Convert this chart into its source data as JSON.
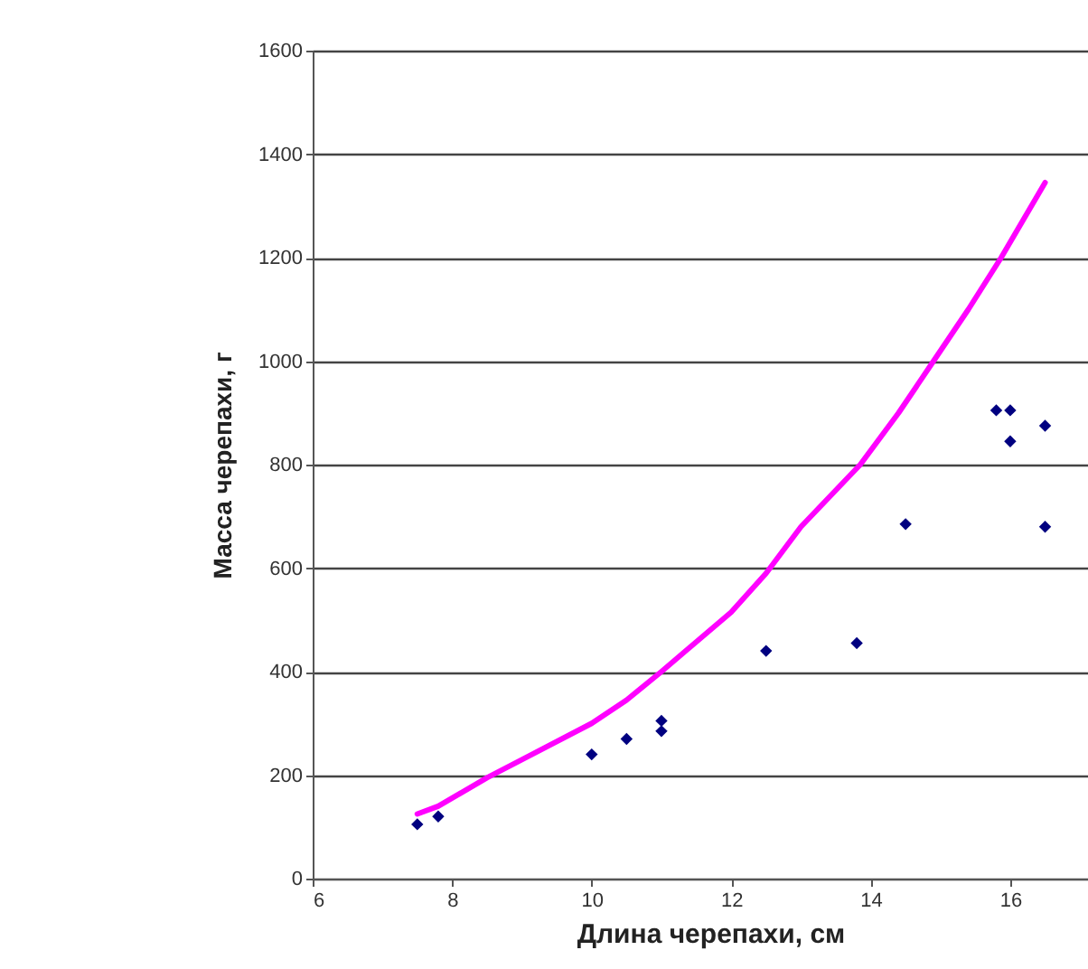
{
  "chart_data": {
    "type": "scatter",
    "xlabel": "Длина черепахи, см",
    "ylabel": "Масса черепахи, г",
    "xlim": [
      6,
      17.4
    ],
    "xticks": [
      6,
      8,
      10,
      12,
      14,
      16
    ],
    "ylim": [
      0,
      1600
    ],
    "yticks": [
      0,
      200,
      400,
      600,
      800,
      1000,
      1200,
      1400,
      1600
    ],
    "grid": "y",
    "series": [
      {
        "color": "#000080",
        "marker": "diamond",
        "x": [
          7.5,
          7.8,
          10,
          10.5,
          11,
          11,
          12.5,
          13.8,
          14.5,
          15.8,
          16,
          16,
          16.5,
          16.5
        ],
        "values": [
          105,
          120,
          240,
          270,
          285,
          305,
          440,
          455,
          685,
          905,
          905,
          845,
          875,
          680
        ]
      },
      {
        "type": "line",
        "color": "#ff00ff",
        "x": [
          7.5,
          7.8,
          8.5,
          9,
          10,
          10.5,
          11,
          12,
          12.5,
          13,
          13.85,
          14.4,
          14.9,
          15.4,
          15.87,
          16.5
        ],
        "values": [
          125,
          140,
          195,
          230,
          300,
          345,
          400,
          515,
          590,
          680,
          800,
          900,
          1000,
          1100,
          1200,
          1345
        ]
      }
    ]
  }
}
